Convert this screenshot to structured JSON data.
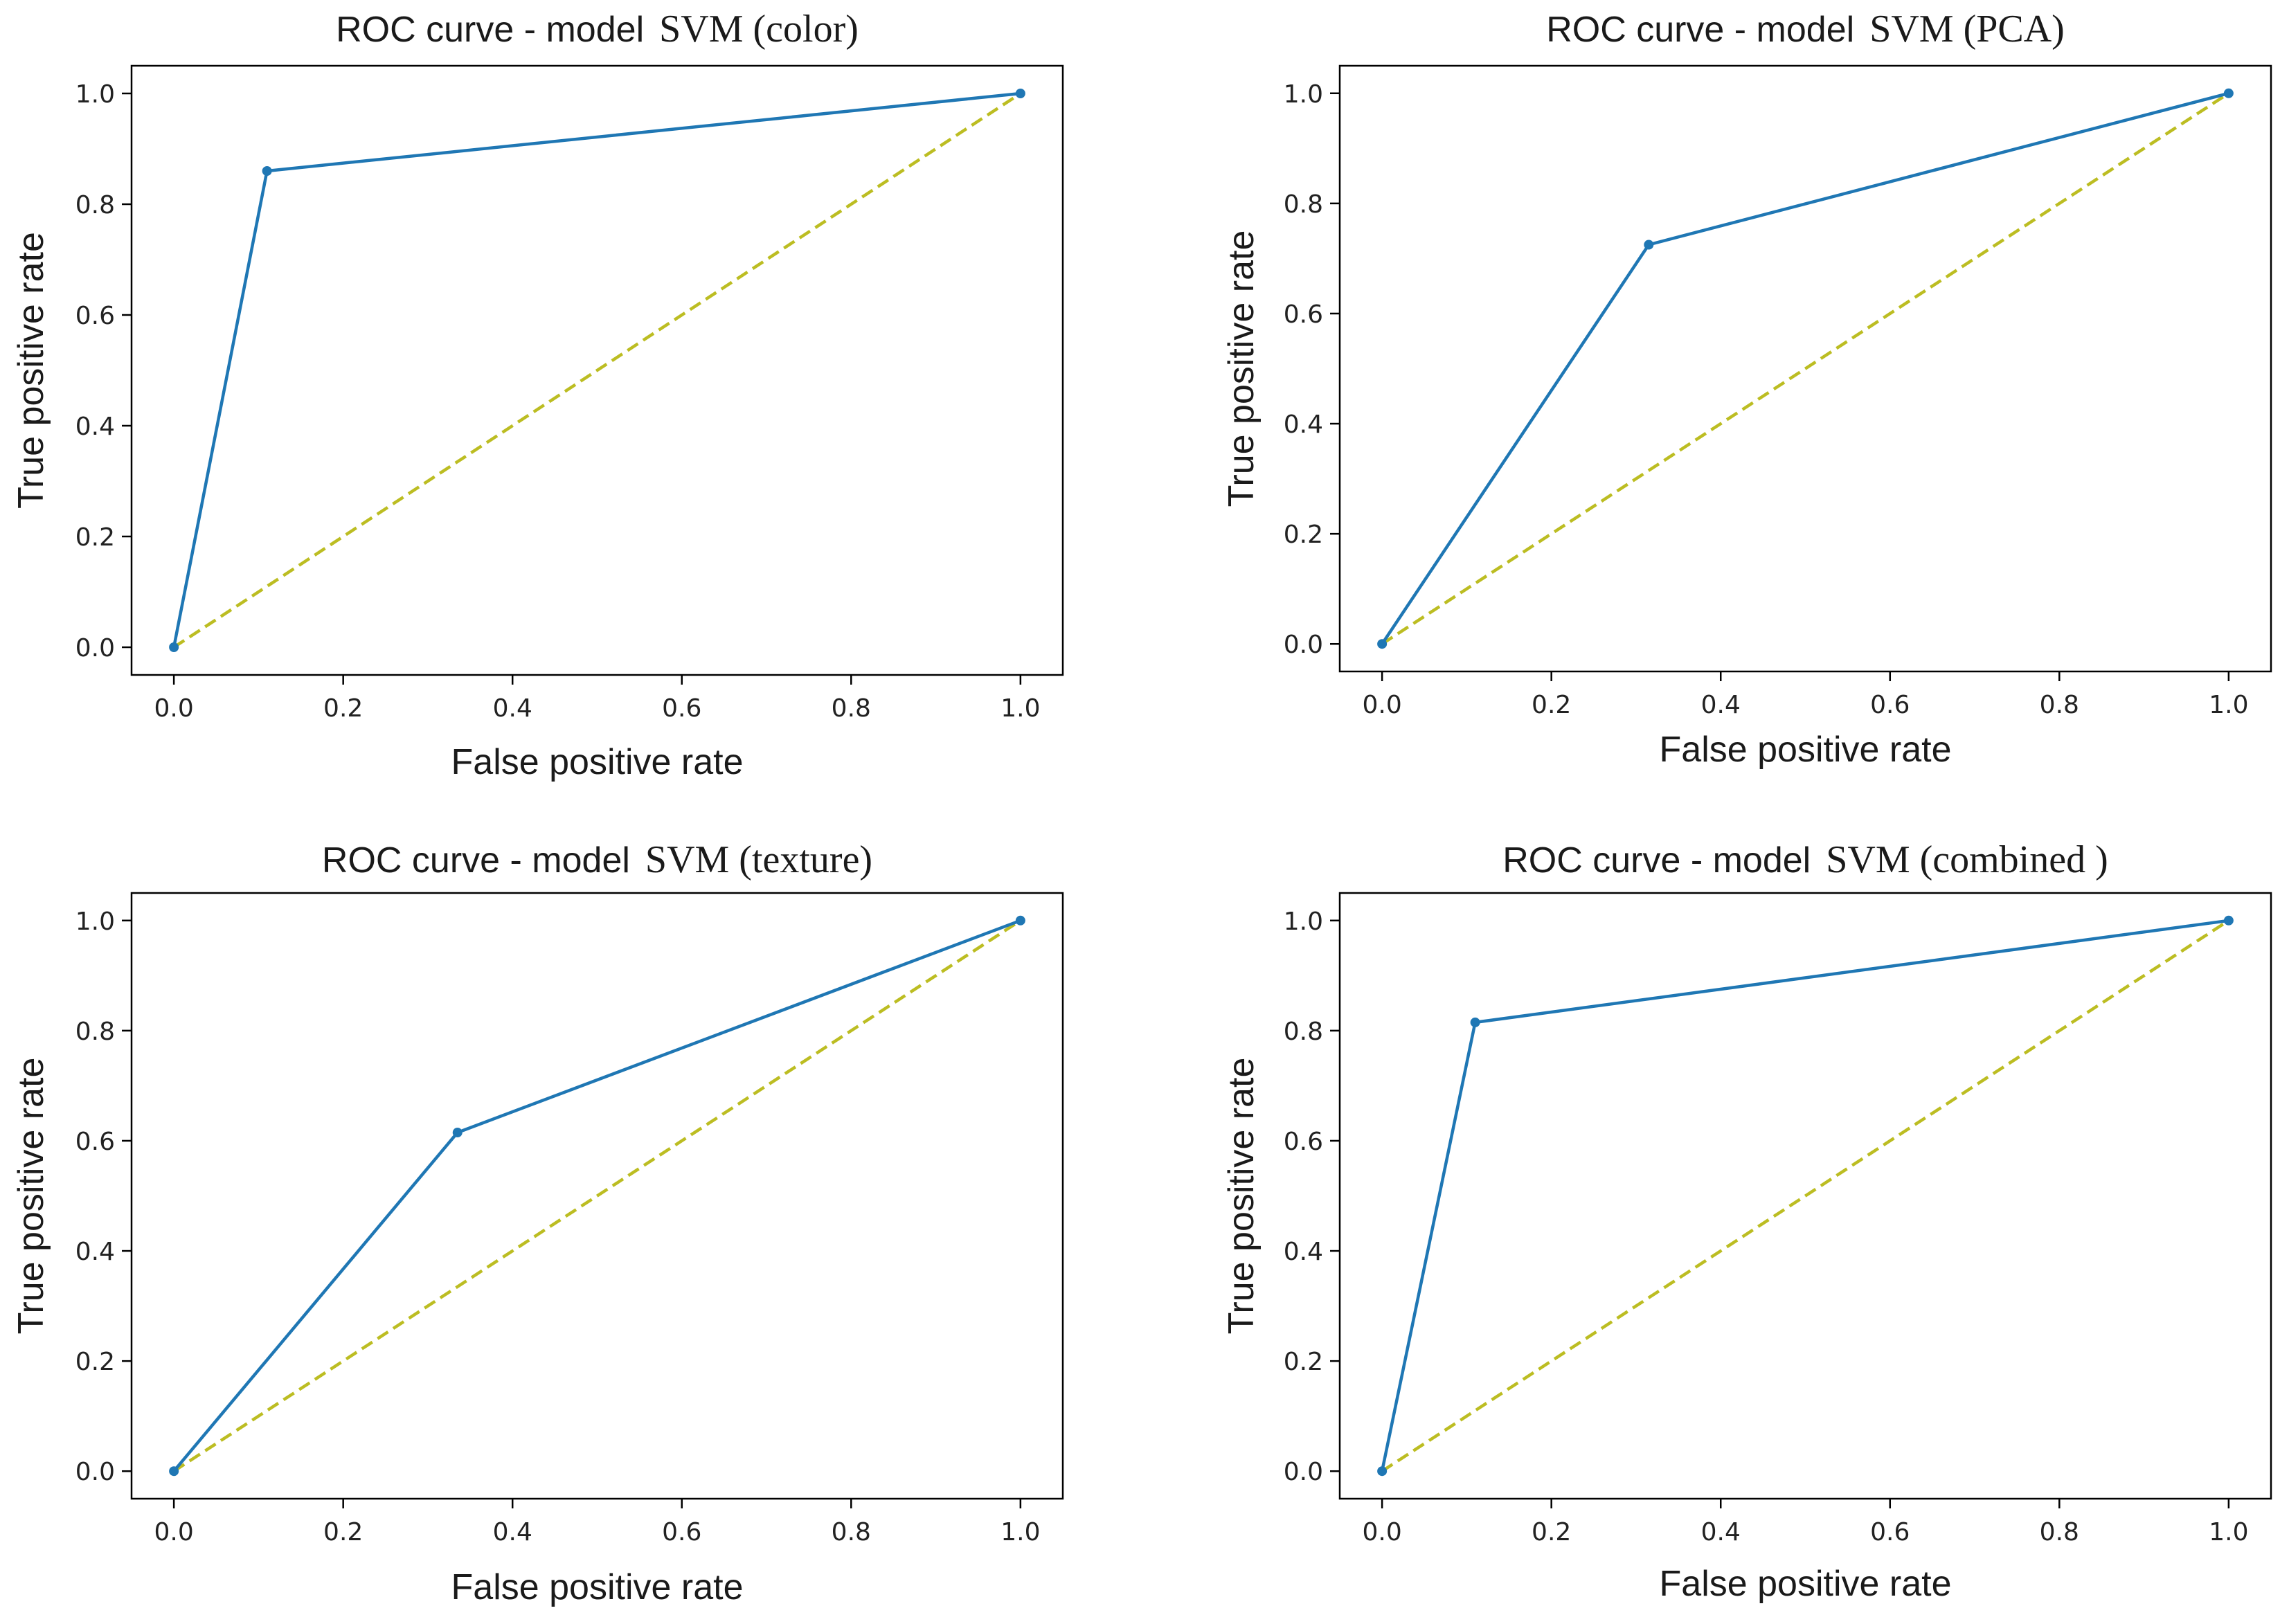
{
  "chart_data": [
    {
      "type": "line",
      "title": "ROC curve - model",
      "title_model": "SVM (color)",
      "xlabel": "False positive rate",
      "ylabel": "True positive rate",
      "xlim": [
        -0.05,
        1.05
      ],
      "ylim": [
        -0.05,
        1.05
      ],
      "xticks": [
        "0.0",
        "0.2",
        "0.4",
        "0.6",
        "0.8",
        "1.0"
      ],
      "yticks": [
        "0.0",
        "0.2",
        "0.4",
        "0.6",
        "0.8",
        "1.0"
      ],
      "grid": false,
      "series": [
        {
          "x": [
            0.0,
            0.11,
            1.0
          ],
          "y": [
            0.0,
            0.86,
            1.0
          ],
          "color": "#1f77b4",
          "style": "solid",
          "marker": "dot"
        },
        {
          "x": [
            0.0,
            1.0
          ],
          "y": [
            0.0,
            1.0
          ],
          "color": "#bcbd22",
          "style": "dashed"
        }
      ]
    },
    {
      "type": "line",
      "title": "ROC curve - model",
      "title_model": "SVM (PCA)",
      "xlabel": "False positive rate",
      "ylabel": "True positive rate",
      "xlim": [
        -0.05,
        1.05
      ],
      "ylim": [
        -0.05,
        1.05
      ],
      "xticks": [
        "0.0",
        "0.2",
        "0.4",
        "0.6",
        "0.8",
        "1.0"
      ],
      "yticks": [
        "0.0",
        "0.2",
        "0.4",
        "0.6",
        "0.8",
        "1.0"
      ],
      "grid": false,
      "series": [
        {
          "x": [
            0.0,
            0.315,
            1.0
          ],
          "y": [
            0.0,
            0.725,
            1.0
          ],
          "color": "#1f77b4",
          "style": "solid",
          "marker": "dot"
        },
        {
          "x": [
            0.0,
            1.0
          ],
          "y": [
            0.0,
            1.0
          ],
          "color": "#bcbd22",
          "style": "dashed"
        }
      ]
    },
    {
      "type": "line",
      "title": "ROC curve - model",
      "title_model": "SVM (texture)",
      "xlabel": "False positive rate",
      "ylabel": "True positive rate",
      "xlim": [
        -0.05,
        1.05
      ],
      "ylim": [
        -0.05,
        1.05
      ],
      "xticks": [
        "0.0",
        "0.2",
        "0.4",
        "0.6",
        "0.8",
        "1.0"
      ],
      "yticks": [
        "0.0",
        "0.2",
        "0.4",
        "0.6",
        "0.8",
        "1.0"
      ],
      "grid": false,
      "series": [
        {
          "x": [
            0.0,
            0.335,
            1.0
          ],
          "y": [
            0.0,
            0.615,
            1.0
          ],
          "color": "#1f77b4",
          "style": "solid",
          "marker": "dot"
        },
        {
          "x": [
            0.0,
            1.0
          ],
          "y": [
            0.0,
            1.0
          ],
          "color": "#bcbd22",
          "style": "dashed"
        }
      ]
    },
    {
      "type": "line",
      "title": "ROC curve - model",
      "title_model": "SVM (combined )",
      "xlabel": "False positive rate",
      "ylabel": "True positive rate",
      "xlim": [
        -0.05,
        1.05
      ],
      "ylim": [
        -0.05,
        1.05
      ],
      "xticks": [
        "0.0",
        "0.2",
        "0.4",
        "0.6",
        "0.8",
        "1.0"
      ],
      "yticks": [
        "0.0",
        "0.2",
        "0.4",
        "0.6",
        "0.8",
        "1.0"
      ],
      "grid": false,
      "series": [
        {
          "x": [
            0.0,
            0.11,
            1.0
          ],
          "y": [
            0.0,
            0.815,
            1.0
          ],
          "color": "#1f77b4",
          "style": "solid",
          "marker": "dot"
        },
        {
          "x": [
            0.0,
            1.0
          ],
          "y": [
            0.0,
            1.0
          ],
          "color": "#bcbd22",
          "style": "dashed"
        }
      ]
    }
  ]
}
